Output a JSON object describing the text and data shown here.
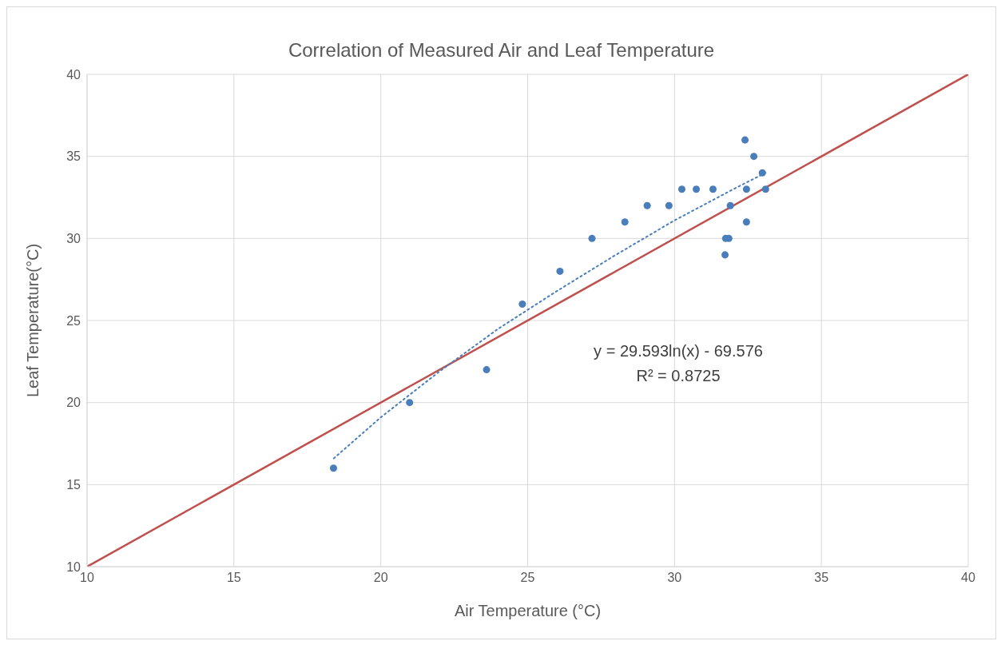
{
  "chart_data": {
    "type": "scatter",
    "title": "Correlation of Measured Air and Leaf Temperature",
    "xlabel": "Air Temperature (°C)",
    "ylabel": "Leaf Temperature(°C)",
    "xlim": [
      10,
      40
    ],
    "xticks": [
      10,
      15,
      20,
      25,
      30,
      35,
      40
    ],
    "ylim": [
      10,
      40
    ],
    "yticks": [
      10,
      15,
      20,
      25,
      30,
      35,
      40
    ],
    "grid": true,
    "marker": "circle",
    "series": [
      {
        "color": "#4a7ebb",
        "x": [
          18.39,
          20.98,
          23.6,
          24.82,
          26.1,
          27.19,
          28.31,
          29.07,
          29.81,
          30.25,
          30.74,
          31.31,
          31.72,
          31.74,
          31.85,
          31.9,
          32.4,
          32.45,
          32.45,
          32.7,
          32.99,
          33.1
        ],
        "values": [
          16,
          20,
          22,
          26,
          28,
          30,
          31,
          32,
          32,
          33,
          33,
          33,
          29,
          30,
          30,
          32,
          36,
          33,
          31,
          35,
          34,
          33
        ]
      },
      {
        "type": "line",
        "color": "#c0504d",
        "line_style": "solid",
        "marker": "none",
        "x": [
          10,
          40
        ],
        "values": [
          10,
          40
        ]
      },
      {
        "type": "line",
        "color": "#4a7ebb",
        "line_style": "dotted",
        "marker": "none",
        "x": [
          18.4,
          20,
          22,
          24,
          26,
          28,
          30,
          32,
          33.1
        ],
        "values": [
          16.6,
          19.1,
          21.9,
          24.5,
          26.8,
          29,
          31.1,
          33,
          34
        ]
      }
    ],
    "annotations": [
      "y = 29.593ln(x) - 69.576",
      "R² = 0.8725"
    ]
  }
}
